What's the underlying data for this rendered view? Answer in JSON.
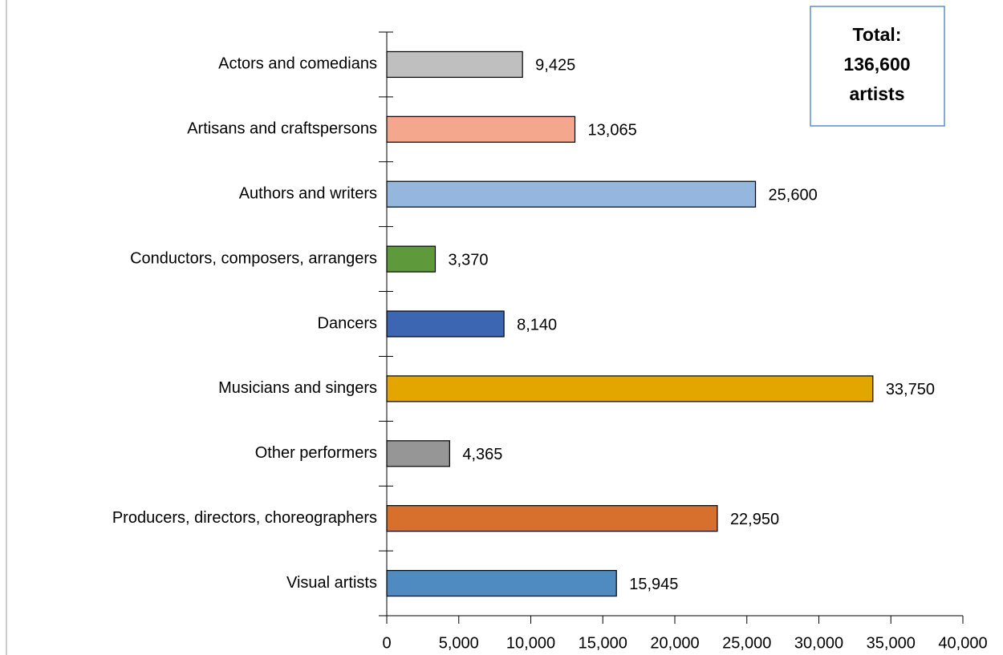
{
  "chart_data": {
    "type": "barh",
    "categories": [
      "Actors and comedians",
      "Artisans and craftspersons",
      "Authors and writers",
      "Conductors, composers, arrangers",
      "Dancers",
      "Musicians and singers",
      "Other performers",
      "Producers, directors, choreographers",
      "Visual artists"
    ],
    "values": [
      9425,
      13065,
      25600,
      3370,
      8140,
      33750,
      4365,
      22950,
      15945
    ],
    "value_labels": [
      "9,425",
      "13,065",
      "25,600",
      "3,370",
      "8,140",
      "33,750",
      "4,365",
      "22,950",
      "15,945"
    ],
    "colors": [
      "#bfbfbf",
      "#f4a78c",
      "#95b7de",
      "#5e9a3c",
      "#3d66b2",
      "#e3a600",
      "#969696",
      "#d6702c",
      "#4f8bc1"
    ],
    "xlim": [
      0,
      40000
    ],
    "xticks": [
      0,
      {
        "value": 5000,
        "label": "5,000"
      },
      {
        "value": 10000,
        "label": "10,000"
      },
      {
        "value": 15000,
        "label": "15,000"
      },
      {
        "value": 20000,
        "label": "20,000"
      },
      {
        "value": 25000,
        "label": "25,000"
      },
      {
        "value": 30000,
        "label": "30,000"
      },
      {
        "value": 35000,
        "label": "35,000"
      },
      {
        "value": 40000,
        "label": "40,000"
      }
    ],
    "annotation_lines": [
      "Total:",
      "136,600",
      "artists"
    ],
    "grid": false
  }
}
